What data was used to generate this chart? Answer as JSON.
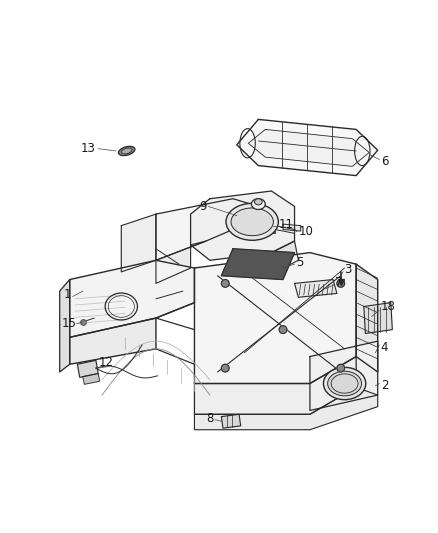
{
  "background_color": "#ffffff",
  "line_color": "#2a2a2a",
  "label_color": "#1a1a1a",
  "figure_width": 4.38,
  "figure_height": 5.33,
  "dpi": 100
}
